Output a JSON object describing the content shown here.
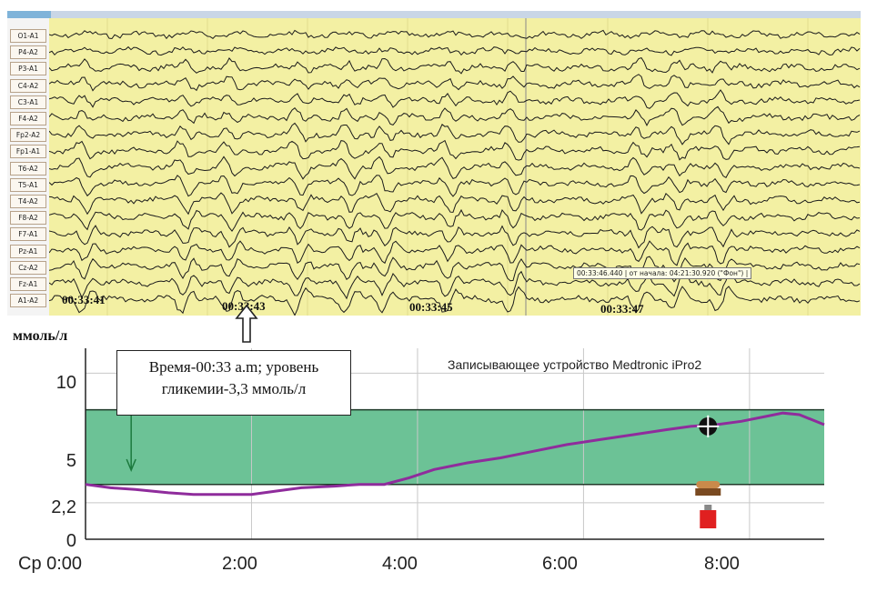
{
  "eeg": {
    "channels": [
      "O1-A1",
      "P4-A2",
      "P3-A1",
      "C4-A2",
      "C3-A1",
      "F4-A2",
      "Fp2-A2",
      "Fp1-A1",
      "T6-A2",
      "T5-A1",
      "T4-A2",
      "F8-A2",
      "F7-A1",
      "Pz-A1",
      "Cz-A2",
      "Fz-A1",
      "A1-A2"
    ],
    "time_labels": [
      "00:33:41",
      "00:33:43",
      "00:33:45",
      "00:33:47"
    ],
    "cursor_tooltip": "00:33:46.440 | от начала: 04:21:30.920 (\"Фон\") |"
  },
  "glucose": {
    "unit_label": "ммоль/л",
    "device_label": "Записывающее устройство Medtronic iPro2",
    "annotation_line1": "Время-00:33 a.m; уровень",
    "annotation_line2": "гликемии-3,3 ммоль/л",
    "colors": {
      "target_band": "#6cc296",
      "curve": "#8f2c9c",
      "background": "#ffffff"
    }
  },
  "chart_data": {
    "type": "line",
    "xlabel": "",
    "ylabel": "ммоль/л",
    "x_ticks": [
      "Ср 0:00",
      "2:00",
      "4:00",
      "6:00",
      "8:00"
    ],
    "y_ticks": [
      "0",
      "2,2",
      "5",
      "10"
    ],
    "xlim": [
      0,
      8.9
    ],
    "ylim": [
      0,
      11.5
    ],
    "target_range": [
      3.3,
      7.8
    ],
    "grid": true,
    "series": [
      {
        "x": [
          0,
          0.3,
          0.6,
          1.0,
          1.3,
          1.6,
          2.0,
          2.3,
          2.6,
          3.0,
          3.3,
          3.6,
          3.9,
          4.2,
          4.6,
          5.0,
          5.4,
          5.8,
          6.2,
          6.6,
          7.0,
          7.3,
          7.6,
          7.9,
          8.2,
          8.4,
          8.6,
          8.9
        ],
        "y": [
          3.3,
          3.1,
          3.0,
          2.8,
          2.7,
          2.7,
          2.7,
          2.9,
          3.1,
          3.2,
          3.3,
          3.3,
          3.7,
          4.2,
          4.6,
          4.9,
          5.3,
          5.7,
          6.0,
          6.3,
          6.6,
          6.8,
          6.9,
          7.1,
          7.4,
          7.6,
          7.5,
          6.9
        ]
      }
    ]
  }
}
